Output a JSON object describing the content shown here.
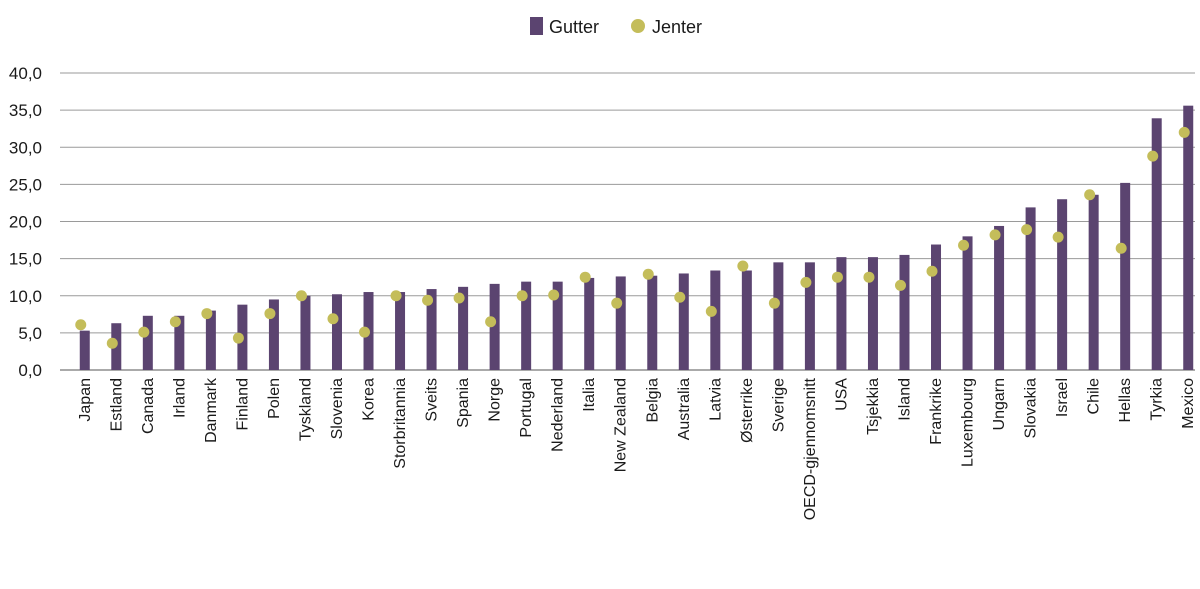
{
  "chart_data": {
    "type": "bar",
    "title": "",
    "xlabel": "",
    "ylabel": "",
    "ylim": [
      0,
      40
    ],
    "yticks": [
      "0,0",
      "5,0",
      "10,0",
      "15,0",
      "20,0",
      "25,0",
      "30,0",
      "35,0",
      "40,0"
    ],
    "grid": true,
    "legend": "top-center",
    "categories": [
      "Japan",
      "Estland",
      "Canada",
      "Irland",
      "Danmark",
      "Finland",
      "Polen",
      "Tyskland",
      "Slovenia",
      "Korea",
      "Storbritannia",
      "Sveits",
      "Spania",
      "Norge",
      "Portugal",
      "Nederland",
      "Italia",
      "New Zealand",
      "Belgia",
      "Australia",
      "Latvia",
      "Østerrike",
      "Sverige",
      "OECD-gjennomsnitt",
      "USA",
      "Tsjekkia",
      "Island",
      "Frankrike",
      "Luxembourg",
      "Ungarn",
      "Slovakia",
      "Israel",
      "Chile",
      "Hellas",
      "Tyrkia",
      "Mexico"
    ],
    "series": [
      {
        "name": "Gutter",
        "kind": "bar",
        "color": "#5b4470",
        "values": [
          5.3,
          6.3,
          7.3,
          7.3,
          8.0,
          8.8,
          9.5,
          10.0,
          10.2,
          10.5,
          10.5,
          10.9,
          11.2,
          11.6,
          11.9,
          11.9,
          12.4,
          12.6,
          12.7,
          13.0,
          13.4,
          13.4,
          14.5,
          14.5,
          15.2,
          15.2,
          15.5,
          16.9,
          18.0,
          19.4,
          21.9,
          23.0,
          23.6,
          25.2,
          33.9,
          35.6
        ]
      },
      {
        "name": "Jenter",
        "kind": "dot",
        "color": "#c4bd5a",
        "values": [
          6.1,
          3.6,
          5.1,
          6.5,
          7.6,
          4.3,
          7.6,
          10.0,
          6.9,
          5.1,
          10.0,
          9.4,
          9.7,
          6.5,
          10.0,
          10.1,
          12.5,
          9.0,
          12.9,
          9.8,
          7.9,
          14.0,
          9.0,
          11.8,
          12.5,
          12.5,
          11.4,
          13.3,
          16.8,
          18.2,
          18.9,
          17.9,
          23.6,
          16.4,
          28.8,
          32.0
        ]
      }
    ]
  }
}
